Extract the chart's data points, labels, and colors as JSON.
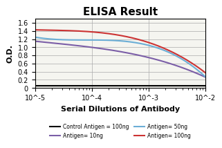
{
  "title": "ELISA Result",
  "ylabel": "O.D.",
  "xlabel": "Serial Dilutions of Antibody",
  "x_values": [
    0.01,
    0.001,
    0.0001,
    1e-05
  ],
  "lines": [
    {
      "label": "Control Antigen = 100ng",
      "color": "#000000",
      "linewidth": 1.5,
      "y_values": [
        0.05,
        0.05,
        0.05,
        0.05
      ]
    },
    {
      "label": "Antigen= 10ng",
      "color": "#7B5EA7",
      "linewidth": 1.5,
      "y_values": [
        1.15,
        1.0,
        0.75,
        0.27
      ]
    },
    {
      "label": "Antigen= 50ng",
      "color": "#6BAED6",
      "linewidth": 1.5,
      "y_values": [
        1.25,
        1.18,
        1.05,
        0.28
      ]
    },
    {
      "label": "Antigen= 100ng",
      "color": "#CC3333",
      "linewidth": 1.5,
      "y_values": [
        1.43,
        1.38,
        1.12,
        0.38
      ]
    }
  ],
  "ylim": [
    0,
    1.7
  ],
  "yticks": [
    0,
    0.2,
    0.4,
    0.6,
    0.8,
    1.0,
    1.2,
    1.4,
    1.6
  ],
  "background_color": "#f5f5f0",
  "grid_color": "#aaaaaa",
  "title_fontsize": 11,
  "label_fontsize": 7,
  "legend_fontsize": 5.5
}
